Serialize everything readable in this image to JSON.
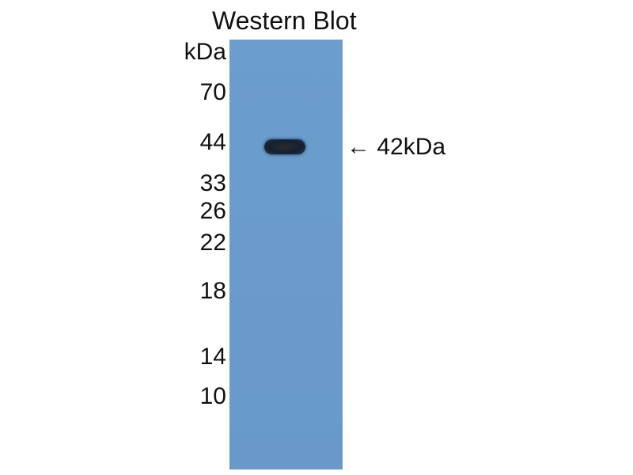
{
  "title": "Western Blot",
  "unit_label": "kDa",
  "markers": [
    "70",
    "44",
    "33",
    "26",
    "22",
    "18",
    "14",
    "10"
  ],
  "band_annotation": {
    "arrow": "←",
    "label": "42kDa"
  },
  "colors": {
    "membrane": "#6a9bcb",
    "band": "#16202c"
  }
}
